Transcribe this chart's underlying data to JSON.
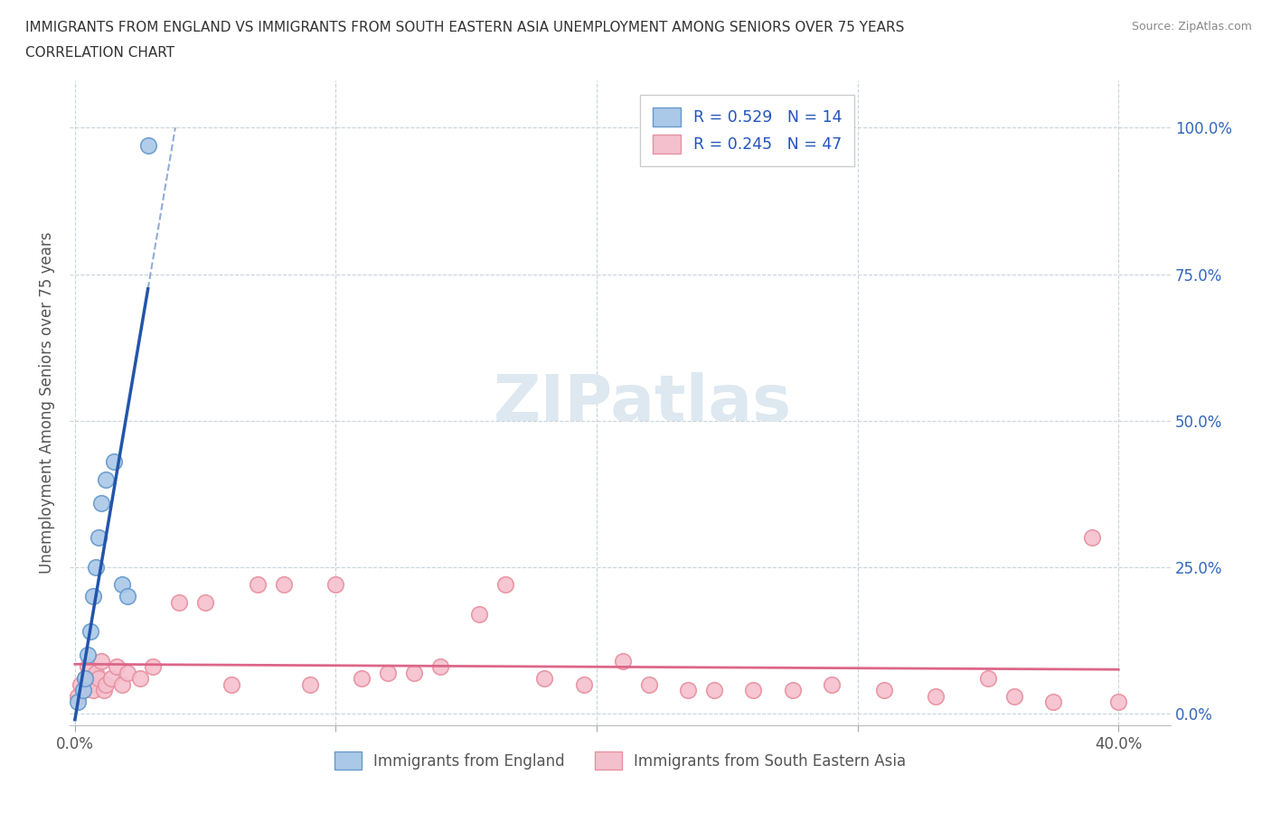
{
  "title_line1": "IMMIGRANTS FROM ENGLAND VS IMMIGRANTS FROM SOUTH EASTERN ASIA UNEMPLOYMENT AMONG SENIORS OVER 75 YEARS",
  "title_line2": "CORRELATION CHART",
  "source": "Source: ZipAtlas.com",
  "ylabel": "Unemployment Among Seniors over 75 years",
  "xlim": [
    -0.002,
    0.42
  ],
  "ylim": [
    -0.02,
    1.08
  ],
  "xticks": [
    0.0,
    0.1,
    0.2,
    0.3,
    0.4
  ],
  "yticks": [
    0.0,
    0.25,
    0.5,
    0.75,
    1.0
  ],
  "england_color": "#aac8e8",
  "england_edge": "#6699cc",
  "sea_color": "#f5c0ce",
  "sea_edge": "#e890a0",
  "england_line_color": "#2255aa",
  "sea_line_color": "#dd6688",
  "england_dash_color": "#7799cc",
  "england_R": 0.529,
  "england_N": 14,
  "sea_R": 0.245,
  "sea_N": 47,
  "legend_R_color": "#2255bb",
  "watermark_color": "#dde8f0",
  "england_x": [
    0.001,
    0.003,
    0.004,
    0.005,
    0.006,
    0.007,
    0.008,
    0.009,
    0.01,
    0.012,
    0.015,
    0.018,
    0.02,
    0.028
  ],
  "england_y": [
    0.02,
    0.04,
    0.06,
    0.1,
    0.14,
    0.2,
    0.25,
    0.3,
    0.36,
    0.4,
    0.43,
    0.22,
    0.2,
    0.97
  ],
  "sea_x": [
    0.001,
    0.002,
    0.003,
    0.004,
    0.005,
    0.006,
    0.007,
    0.008,
    0.009,
    0.01,
    0.011,
    0.012,
    0.014,
    0.016,
    0.018,
    0.02,
    0.025,
    0.03,
    0.04,
    0.05,
    0.06,
    0.07,
    0.08,
    0.09,
    0.1,
    0.11,
    0.12,
    0.13,
    0.14,
    0.155,
    0.165,
    0.18,
    0.195,
    0.21,
    0.22,
    0.235,
    0.245,
    0.26,
    0.275,
    0.29,
    0.31,
    0.33,
    0.35,
    0.36,
    0.375,
    0.39,
    0.4
  ],
  "sea_y": [
    0.03,
    0.05,
    0.04,
    0.06,
    0.08,
    0.05,
    0.04,
    0.07,
    0.06,
    0.09,
    0.04,
    0.05,
    0.06,
    0.08,
    0.05,
    0.07,
    0.06,
    0.08,
    0.19,
    0.19,
    0.05,
    0.22,
    0.22,
    0.05,
    0.22,
    0.06,
    0.07,
    0.07,
    0.08,
    0.17,
    0.22,
    0.06,
    0.05,
    0.09,
    0.05,
    0.04,
    0.04,
    0.04,
    0.04,
    0.05,
    0.04,
    0.03,
    0.06,
    0.03,
    0.02,
    0.3,
    0.02
  ]
}
